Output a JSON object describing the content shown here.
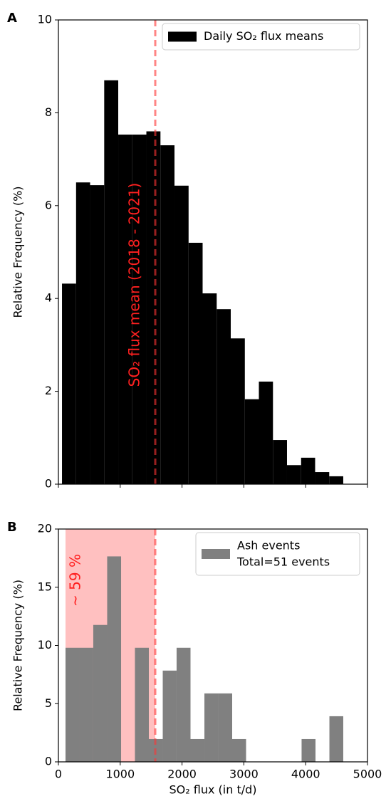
{
  "chart_data": [
    {
      "type": "histogram",
      "panel_label": "A",
      "ylabel": "Relative Frequency (%)",
      "series": [
        {
          "name": "Daily SO₂ flux means",
          "color": "#000000"
        }
      ],
      "bins": [
        58,
        286,
        513,
        741,
        968,
        1196,
        1423,
        1651,
        1878,
        2106,
        2333,
        2561,
        2788,
        3016,
        3243,
        3471,
        3698,
        3926,
        4153,
        4381,
        4608
      ],
      "values": [
        4.32,
        6.5,
        6.44,
        8.7,
        7.53,
        7.53,
        7.6,
        7.3,
        6.43,
        5.2,
        4.11,
        3.77,
        3.14,
        1.83,
        2.21,
        0.95,
        0.41,
        0.57,
        0.26,
        0.17
      ],
      "vline": 1567,
      "vline_color": "#ff3333",
      "vline_label": "SO₂ flux mean (2018 - 2021)",
      "xlim": [
        0,
        5000
      ],
      "xticks": [
        0,
        1000,
        2000,
        3000,
        4000,
        5000
      ],
      "ylim": [
        0,
        10
      ],
      "yticks": [
        0,
        2,
        4,
        6,
        8,
        10
      ],
      "legend": "upper right"
    },
    {
      "type": "histogram",
      "panel_label": "B",
      "ylabel": "Relative Frequency (%)",
      "xlabel": "SO₂ flux (in t/d)",
      "series": [
        {
          "name": "Ash events",
          "color": "#808080"
        }
      ],
      "legend_note": "Total=51 events",
      "bins": [
        115,
        340,
        564,
        789,
        1014,
        1238,
        1463,
        1688,
        1912,
        2137,
        2362,
        2586,
        2811,
        3036,
        3260,
        3485,
        3710,
        3934,
        4159,
        4384,
        4608
      ],
      "values": [
        9.8,
        9.8,
        11.76,
        17.65,
        0,
        9.8,
        1.96,
        7.84,
        9.8,
        1.96,
        5.88,
        5.88,
        1.96,
        0,
        0,
        0,
        0,
        1.96,
        0,
        3.92
      ],
      "vline": 1567,
      "vline_color": "#ff3333",
      "shade": [
        115,
        1567
      ],
      "shade_color": "#ffc0c0",
      "shade_label": "~ 59 %",
      "xlim": [
        0,
        5000
      ],
      "xticks": [
        0,
        1000,
        2000,
        3000,
        4000,
        5000
      ],
      "ylim": [
        0,
        20
      ],
      "yticks": [
        0,
        5,
        10,
        15,
        20
      ],
      "legend": "upper right"
    }
  ]
}
